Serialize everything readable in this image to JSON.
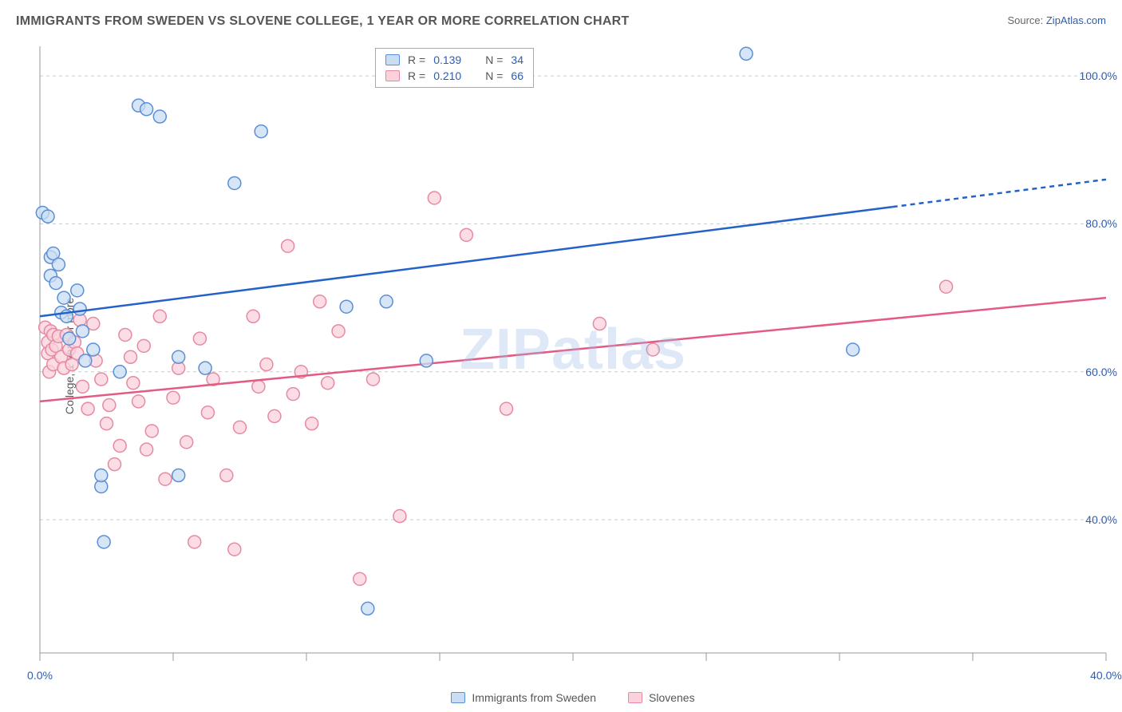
{
  "title": "IMMIGRANTS FROM SWEDEN VS SLOVENE COLLEGE, 1 YEAR OR MORE CORRELATION CHART",
  "source_prefix": "Source: ",
  "source_name": "ZipAtlas.com",
  "ylabel": "College, 1 year or more",
  "watermark": "ZIPatlas",
  "chart": {
    "type": "scatter",
    "background_color": "#ffffff",
    "grid_color": "#cccccc",
    "grid_dash": "4 4",
    "axis_color": "#999999",
    "xlim": [
      0,
      40
    ],
    "ylim": [
      22,
      104
    ],
    "xticks": [
      0,
      5,
      10,
      15,
      20,
      25,
      30,
      35,
      40
    ],
    "xtick_labels": {
      "0": "0.0%",
      "40": "40.0%"
    },
    "yticks": [
      40,
      60,
      80,
      100
    ],
    "ytick_labels": {
      "40": "40.0%",
      "60": "60.0%",
      "80": "80.0%",
      "100": "100.0%"
    },
    "marker_radius": 8,
    "marker_stroke_width": 1.5,
    "line_width": 2.5,
    "label_fontsize": 14,
    "title_fontsize": 16
  },
  "series": [
    {
      "id": "sweden",
      "label": "Immigrants from Sweden",
      "fill": "#c9ddf4",
      "stroke": "#5a8fd6",
      "line_color": "#2462c9",
      "R": "0.139",
      "N": "34",
      "trend": {
        "x1": 0,
        "y1": 67.5,
        "x2": 40,
        "y2": 86,
        "solid_until_x": 32
      },
      "points": [
        [
          0.1,
          81.5
        ],
        [
          0.3,
          81
        ],
        [
          0.4,
          75.5
        ],
        [
          0.4,
          73
        ],
        [
          0.5,
          76
        ],
        [
          0.6,
          72
        ],
        [
          0.7,
          74.5
        ],
        [
          0.8,
          68
        ],
        [
          0.9,
          70
        ],
        [
          1.0,
          67.5
        ],
        [
          1.1,
          64.5
        ],
        [
          1.4,
          71
        ],
        [
          1.5,
          68.5
        ],
        [
          1.6,
          65.5
        ],
        [
          1.7,
          61.5
        ],
        [
          2.0,
          63
        ],
        [
          2.3,
          44.5
        ],
        [
          2.3,
          46
        ],
        [
          2.4,
          37
        ],
        [
          3.0,
          60
        ],
        [
          3.7,
          96
        ],
        [
          4.0,
          95.5
        ],
        [
          4.5,
          94.5
        ],
        [
          5.2,
          62
        ],
        [
          5.2,
          46
        ],
        [
          6.2,
          60.5
        ],
        [
          7.3,
          85.5
        ],
        [
          8.3,
          92.5
        ],
        [
          11.5,
          68.8
        ],
        [
          12.3,
          28
        ],
        [
          13.0,
          69.5
        ],
        [
          14.5,
          61.5
        ],
        [
          26.5,
          103
        ],
        [
          30.5,
          63
        ]
      ]
    },
    {
      "id": "slovenes",
      "label": "Slovenes",
      "fill": "#fbd2dc",
      "stroke": "#e68aa2",
      "line_color": "#e35b82",
      "R": "0.210",
      "N": "66",
      "trend": {
        "x1": 0,
        "y1": 56,
        "x2": 40,
        "y2": 70,
        "solid_until_x": 40
      },
      "points": [
        [
          0.2,
          66
        ],
        [
          0.3,
          64
        ],
        [
          0.3,
          62.5
        ],
        [
          0.35,
          60
        ],
        [
          0.4,
          65.5
        ],
        [
          0.45,
          63
        ],
        [
          0.5,
          61
        ],
        [
          0.5,
          65
        ],
        [
          0.6,
          63.5
        ],
        [
          0.7,
          64.8
        ],
        [
          0.8,
          62
        ],
        [
          0.9,
          60.5
        ],
        [
          1.0,
          65
        ],
        [
          1.1,
          63
        ],
        [
          1.2,
          61
        ],
        [
          1.3,
          64
        ],
        [
          1.4,
          62.5
        ],
        [
          1.5,
          67
        ],
        [
          1.6,
          58
        ],
        [
          1.8,
          55
        ],
        [
          2.0,
          66.5
        ],
        [
          2.1,
          61.5
        ],
        [
          2.3,
          59
        ],
        [
          2.5,
          53
        ],
        [
          2.6,
          55.5
        ],
        [
          2.8,
          47.5
        ],
        [
          3.0,
          50
        ],
        [
          3.2,
          65
        ],
        [
          3.4,
          62
        ],
        [
          3.5,
          58.5
        ],
        [
          3.7,
          56
        ],
        [
          3.9,
          63.5
        ],
        [
          4.0,
          49.5
        ],
        [
          4.2,
          52
        ],
        [
          4.5,
          67.5
        ],
        [
          4.7,
          45.5
        ],
        [
          5.0,
          56.5
        ],
        [
          5.2,
          60.5
        ],
        [
          5.5,
          50.5
        ],
        [
          5.8,
          37
        ],
        [
          6.0,
          64.5
        ],
        [
          6.3,
          54.5
        ],
        [
          6.5,
          59
        ],
        [
          7.0,
          46
        ],
        [
          7.3,
          36
        ],
        [
          7.5,
          52.5
        ],
        [
          8.0,
          67.5
        ],
        [
          8.2,
          58
        ],
        [
          8.5,
          61
        ],
        [
          8.8,
          54
        ],
        [
          9.3,
          77
        ],
        [
          9.5,
          57
        ],
        [
          9.8,
          60
        ],
        [
          10.2,
          53
        ],
        [
          10.5,
          69.5
        ],
        [
          10.8,
          58.5
        ],
        [
          11.2,
          65.5
        ],
        [
          12.0,
          32
        ],
        [
          12.5,
          59
        ],
        [
          13.5,
          40.5
        ],
        [
          14.8,
          83.5
        ],
        [
          16.0,
          78.5
        ],
        [
          17.5,
          55
        ],
        [
          21.0,
          66.5
        ],
        [
          23.0,
          63
        ],
        [
          34.0,
          71.5
        ]
      ]
    }
  ],
  "legend_bottom": {
    "items": [
      {
        "label": "Immigrants from Sweden",
        "fill": "#c9ddf4",
        "stroke": "#5a8fd6"
      },
      {
        "label": "Slovenes",
        "fill": "#fbd2dc",
        "stroke": "#e68aa2"
      }
    ]
  },
  "statbox": {
    "rows": [
      {
        "fill": "#c9ddf4",
        "stroke": "#5a8fd6",
        "R_label": "R =",
        "R": "0.139",
        "N_label": "N =",
        "N": "34"
      },
      {
        "fill": "#fbd2dc",
        "stroke": "#e68aa2",
        "R_label": "R =",
        "R": "0.210",
        "N_label": "N =",
        "N": "66"
      }
    ]
  }
}
